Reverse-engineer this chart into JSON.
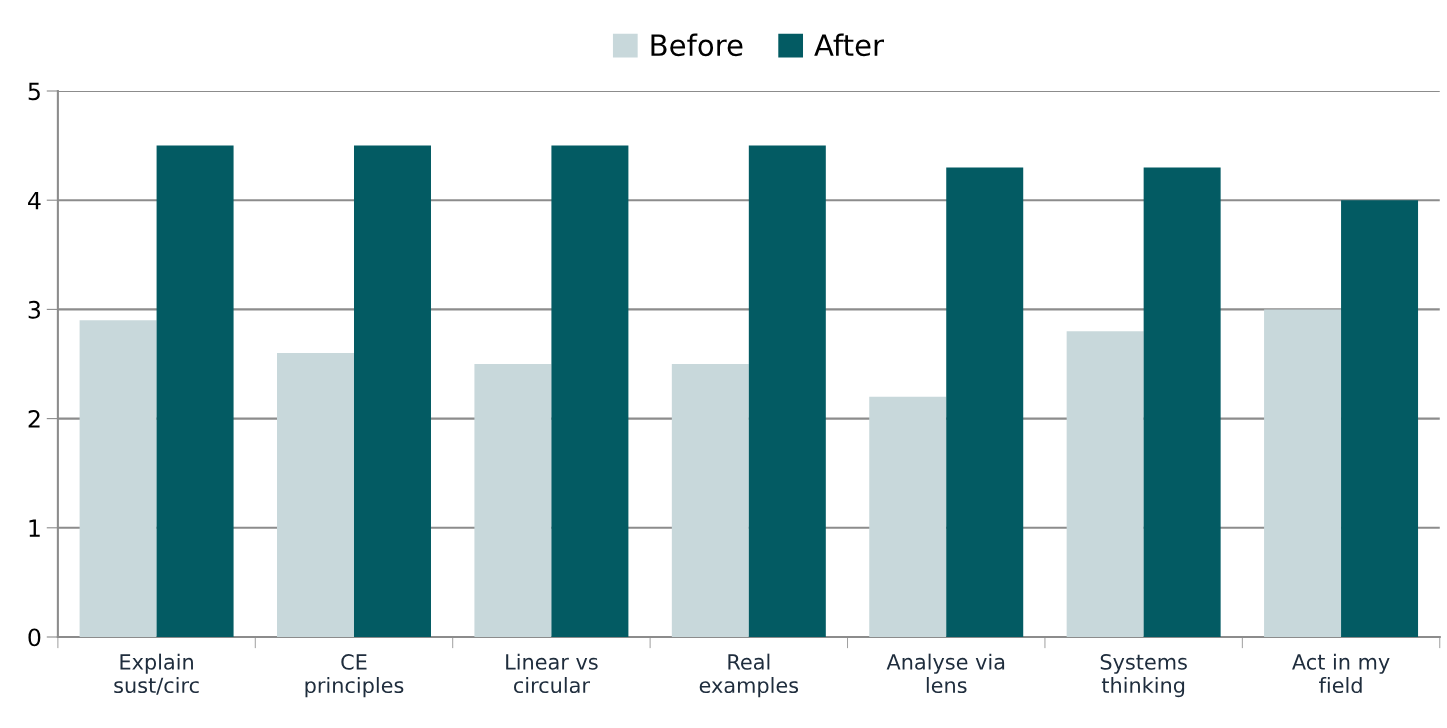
{
  "chart_data": {
    "type": "bar",
    "categories": [
      "Explain\nsust/circ",
      "CE\nprinciples",
      "Linear vs\ncircular",
      "Real\nexamples",
      "Analyse via\nlens",
      "Systems\nthinking",
      "Act in my\nfield"
    ],
    "series": [
      {
        "name": "Before",
        "color": "#c8d8db",
        "values": [
          2.9,
          2.6,
          2.5,
          2.5,
          2.2,
          2.8,
          3.0
        ]
      },
      {
        "name": "After",
        "color": "#035b63",
        "values": [
          4.5,
          4.5,
          4.5,
          4.5,
          4.3,
          4.3,
          4.0
        ]
      }
    ],
    "ylim": [
      0,
      5
    ],
    "yticks": [
      0,
      1,
      2,
      3,
      4,
      5
    ],
    "grid": "y",
    "legend": "top"
  }
}
